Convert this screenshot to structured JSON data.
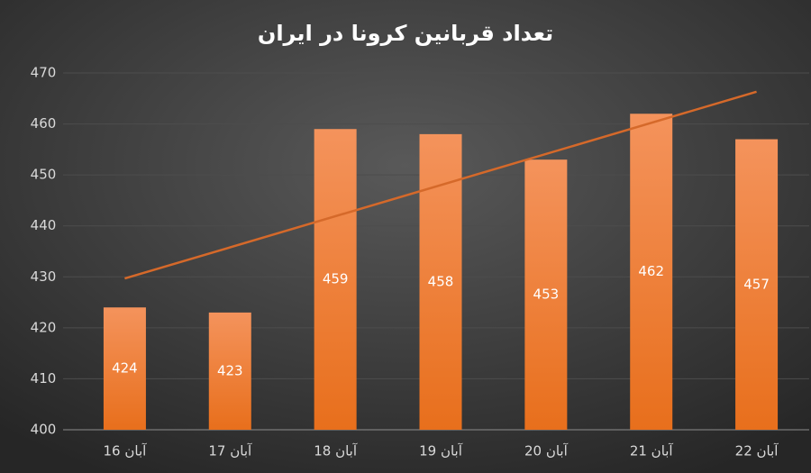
{
  "chart_data": {
    "type": "bar",
    "title": "تعداد قربانین کرونا در ایران",
    "categories": [
      "آبان 16",
      "آبان 17",
      "آبان 18",
      "آبان 19",
      "آبان 20",
      "آبان 21",
      "آبان 22"
    ],
    "values": [
      424,
      423,
      459,
      458,
      453,
      462,
      457
    ],
    "color": "#ee7d34",
    "ylim": [
      400,
      470
    ],
    "yticks": [
      400,
      410,
      420,
      430,
      440,
      450,
      460,
      470
    ],
    "grid": true,
    "trendline": "linear",
    "trendline_color": "#d5692a"
  }
}
